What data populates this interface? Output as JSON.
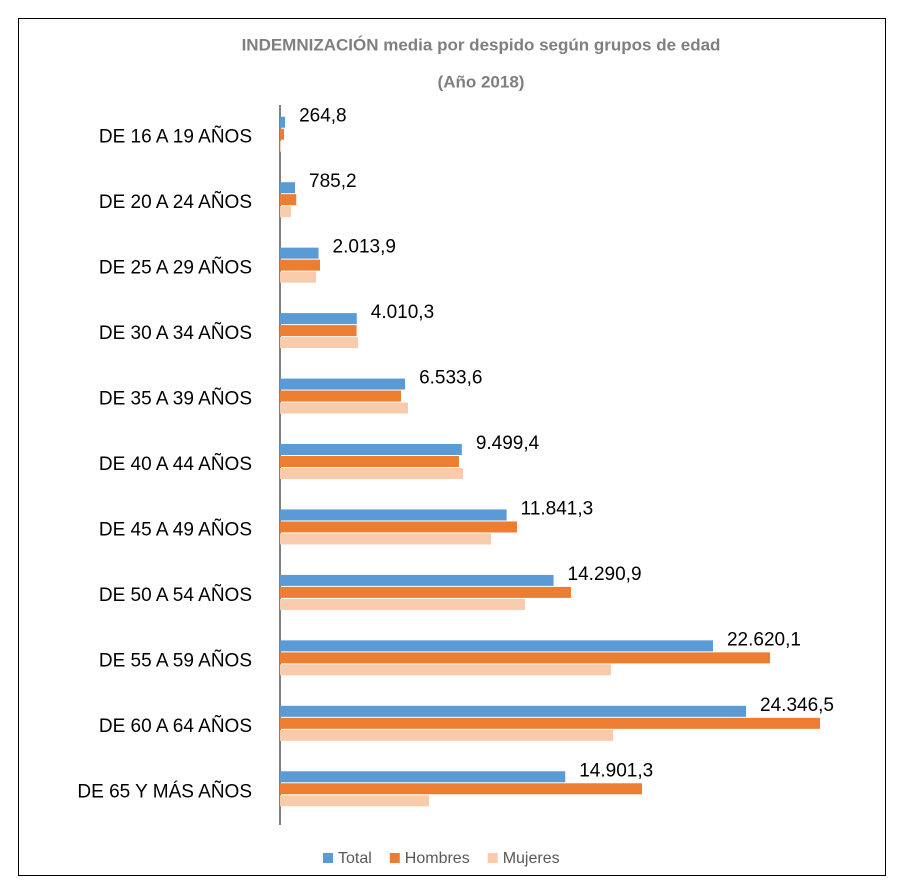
{
  "chart_data": {
    "type": "hbar",
    "title": "INDEMNIZACIÓN  media por despido según grupos de edad",
    "subtitle": "(Año 2018)",
    "categories": [
      "DE 16 A 19 AÑOS",
      "DE 20 A 24 AÑOS",
      "DE 25 A 29 AÑOS",
      "DE 30 A 34 AÑOS",
      "DE 35 A 39 AÑOS",
      "DE 40 A 44 AÑOS",
      "DE 45 A 49 AÑOS",
      "DE 50 A 54 AÑOS",
      "DE 55 A 59 AÑOS",
      "DE 60 A 64 AÑOS",
      "DE 65 Y MÁS AÑOS"
    ],
    "series": [
      {
        "name": "Total",
        "color": "#5b9bd5",
        "values": [
          264.8,
          785.2,
          2013.9,
          4010.3,
          6533.6,
          9499.4,
          11841.3,
          14290.9,
          22620.1,
          24346.5,
          14901.3
        ],
        "value_labels": [
          "264,8",
          "785,2",
          "2.013,9",
          "4.010,3",
          "6.533,6",
          "9.499,4",
          "11.841,3",
          "14.290,9",
          "22.620,1",
          "24.346,5",
          "14.901,3"
        ]
      },
      {
        "name": "Hombres",
        "color": "#ed7d31",
        "values": [
          210,
          850,
          2090,
          4000,
          6320,
          9350,
          12380,
          15200,
          25600,
          28210,
          18910
        ]
      },
      {
        "name": "Mujeres",
        "color": "#f8cbad",
        "values": [
          50,
          575,
          1880,
          4075,
          6690,
          9560,
          11020,
          12800,
          17290,
          17400,
          7780
        ]
      }
    ],
    "legend": "bottom"
  }
}
